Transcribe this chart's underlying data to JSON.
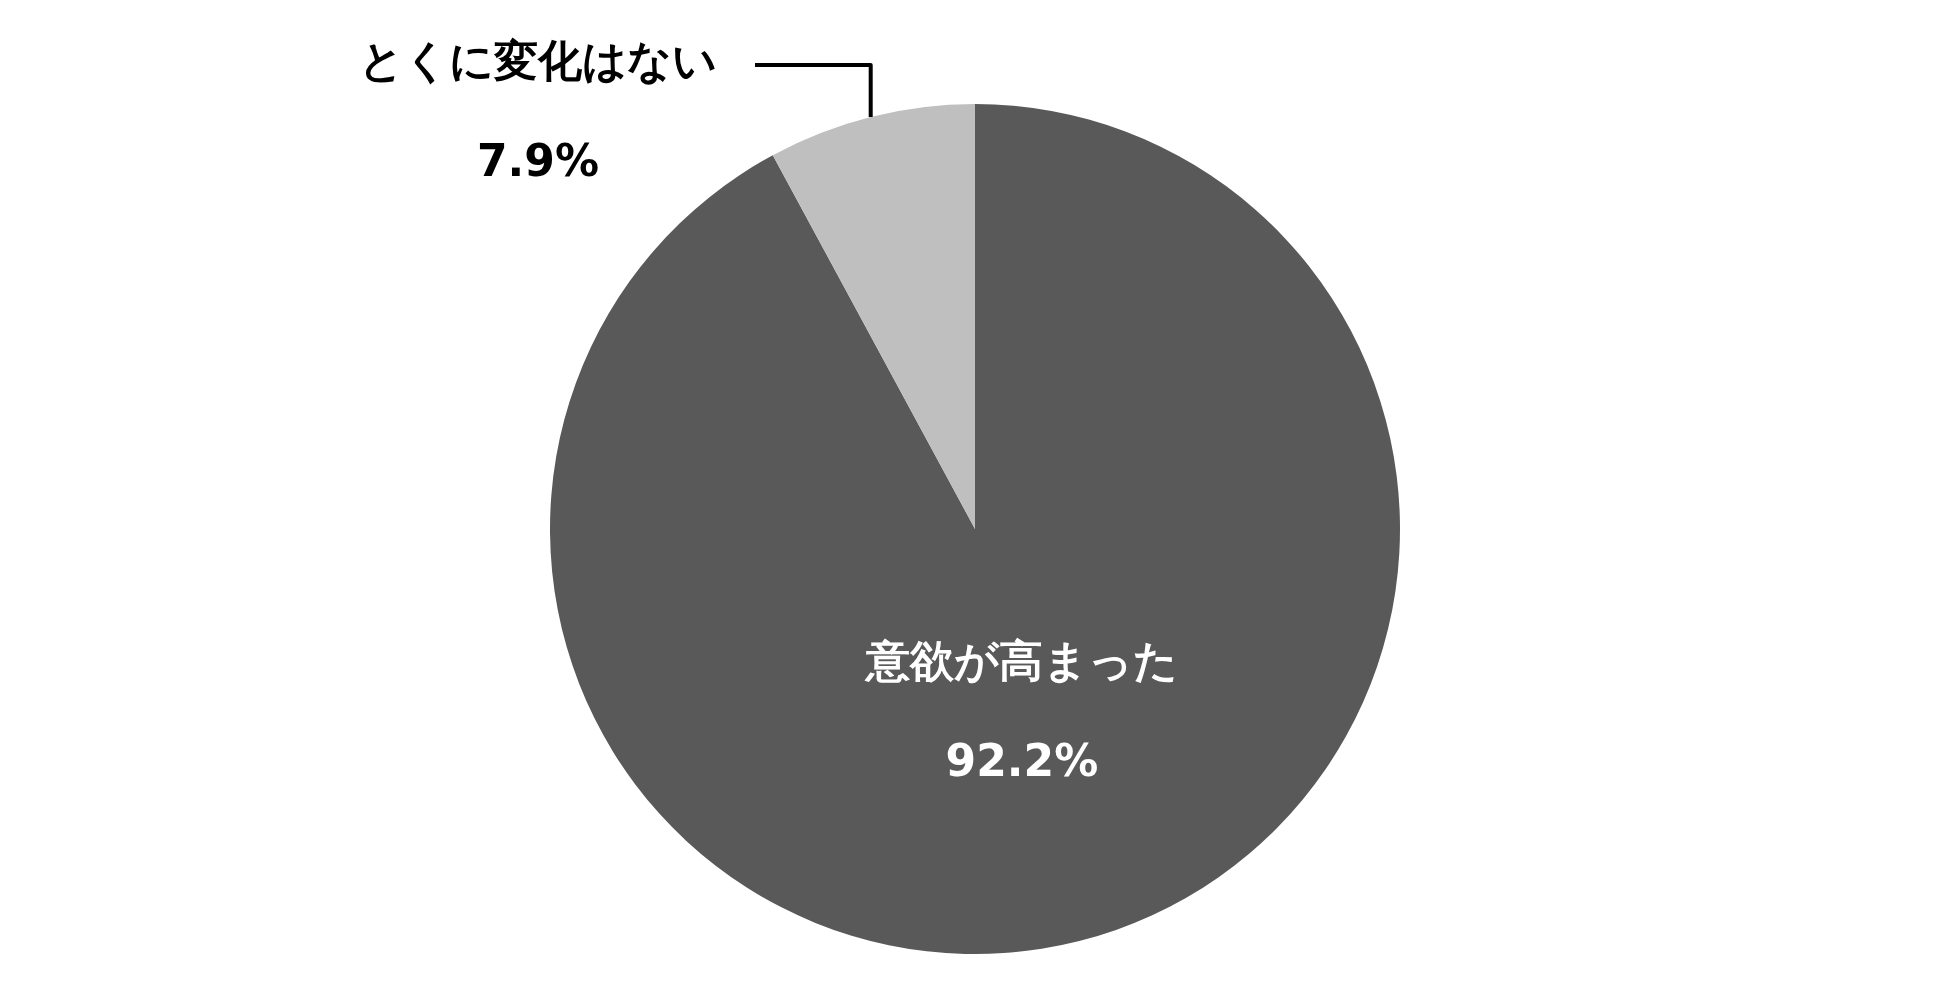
{
  "chart_data": {
    "type": "pie",
    "categories": [
      "意欲が高まった",
      "とくに変化はない"
    ],
    "values": [
      92.2,
      7.9
    ],
    "colors": [
      "#595959",
      "#bfbfbf"
    ],
    "value_labels": [
      "92.2%",
      "7.9%"
    ],
    "legend": false
  }
}
